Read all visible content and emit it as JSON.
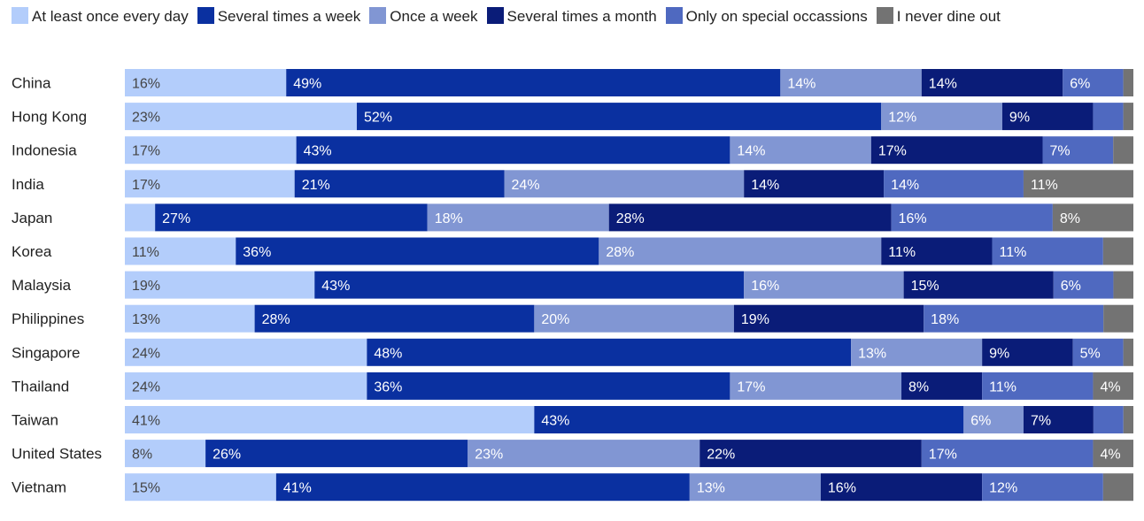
{
  "chart_data": {
    "type": "bar",
    "orientation": "horizontal",
    "stacked": true,
    "normalized": true,
    "title": "",
    "xlabel": "",
    "ylabel": "",
    "xlim": [
      0,
      100
    ],
    "grid": false,
    "legend_position": "top",
    "categories": [
      "China",
      "Hong Kong",
      "Indonesia",
      "India",
      "Japan",
      "Korea",
      "Malaysia",
      "Philippines",
      "Singapore",
      "Thailand",
      "Taiwan",
      "United States",
      "Vietnam"
    ],
    "series": [
      {
        "name": "At least once every day",
        "color": "#b3cdfb",
        "label_color": "#444444",
        "values": [
          16,
          23,
          17,
          17,
          3,
          11,
          19,
          13,
          24,
          24,
          41,
          8,
          15
        ],
        "labels": [
          "16%",
          "23%",
          "17%",
          "17%",
          "",
          "11%",
          "19%",
          "13%",
          "24%",
          "24%",
          "41%",
          "8%",
          "15%"
        ]
      },
      {
        "name": "Several times a week",
        "color": "#0a30a0",
        "label_color": "#ffffff",
        "values": [
          49,
          52,
          43,
          21,
          27,
          36,
          43,
          28,
          48,
          36,
          43,
          26,
          41
        ],
        "labels": [
          "49%",
          "52%",
          "43%",
          "21%",
          "27%",
          "36%",
          "43%",
          "28%",
          "48%",
          "36%",
          "43%",
          "26%",
          "41%"
        ]
      },
      {
        "name": "Once a week",
        "color": "#8196d3",
        "label_color": "#ffffff",
        "values": [
          14,
          12,
          14,
          24,
          18,
          28,
          16,
          20,
          13,
          17,
          6,
          23,
          13
        ],
        "labels": [
          "14%",
          "12%",
          "14%",
          "24%",
          "18%",
          "28%",
          "16%",
          "20%",
          "13%",
          "17%",
          "6%",
          "23%",
          "13%"
        ]
      },
      {
        "name": "Several times a month",
        "color": "#0a1c78",
        "label_color": "#ffffff",
        "values": [
          14,
          9,
          17,
          14,
          28,
          11,
          15,
          19,
          9,
          8,
          7,
          22,
          16
        ],
        "labels": [
          "14%",
          "9%",
          "17%",
          "14%",
          "28%",
          "11%",
          "15%",
          "19%",
          "9%",
          "8%",
          "7%",
          "22%",
          "16%"
        ]
      },
      {
        "name": "Only on special occassions",
        "color": "#4f69c0",
        "label_color": "#ffffff",
        "values": [
          6,
          3,
          7,
          14,
          16,
          11,
          6,
          18,
          5,
          11,
          3,
          17,
          12
        ],
        "labels": [
          "6%",
          "",
          "7%",
          "14%",
          "16%",
          "11%",
          "6%",
          "18%",
          "5%",
          "11%",
          "",
          "17%",
          "12%"
        ]
      },
      {
        "name": "I never dine out",
        "color": "#737373",
        "label_color": "#ffffff",
        "values": [
          1,
          1,
          2,
          11,
          8,
          3,
          2,
          3,
          1,
          4,
          1,
          4,
          3
        ],
        "labels": [
          "",
          "",
          "",
          "11%",
          "8%",
          "",
          "",
          "",
          "",
          "4%",
          "",
          "4%",
          ""
        ]
      }
    ]
  }
}
